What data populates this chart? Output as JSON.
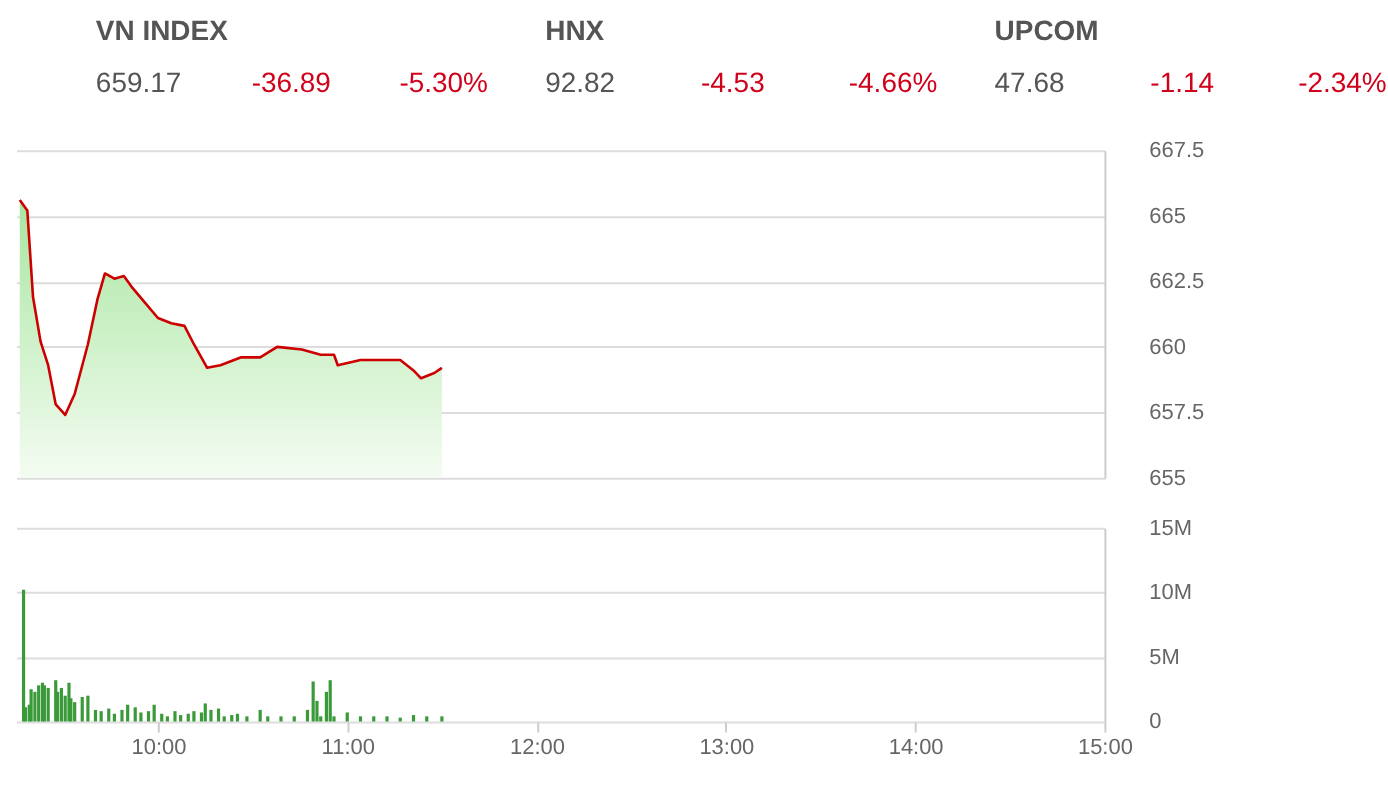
{
  "chart_data": [
    {
      "type": "area",
      "annotations": [
        "VN INDEX",
        "659.17",
        "-36.89",
        "-5.30%",
        "HNX",
        "92.82",
        "-4.53",
        "-4.66%",
        "UPCOM",
        "47.68",
        "-1.14",
        "-2.34%"
      ],
      "xlim": [
        9.25,
        15
      ],
      "ylim": [
        655,
        667.5
      ],
      "yticks": [
        655,
        657.5,
        660,
        662.5,
        665,
        667.5
      ],
      "grid": "y",
      "tick_labels": "y",
      "series": [
        {
          "color": "#cc0000",
          "x": [
            9.27,
            9.31,
            9.34,
            9.38,
            9.42,
            9.46,
            9.51,
            9.56,
            9.63,
            9.68,
            9.72,
            9.77,
            9.82,
            9.86,
            9.93,
            10.0,
            10.07,
            10.14,
            10.19,
            10.26,
            10.33,
            10.44,
            10.54,
            10.63,
            10.76,
            10.86,
            10.93,
            10.95,
            11.07,
            11.21,
            11.28,
            11.35,
            11.39,
            11.46,
            11.5
          ],
          "values": [
            665.6,
            665.2,
            661.9,
            660.2,
            659.3,
            657.8,
            657.4,
            658.2,
            660.1,
            661.8,
            662.8,
            662.6,
            662.7,
            662.3,
            661.7,
            661.1,
            660.9,
            660.8,
            660.1,
            659.2,
            659.3,
            659.6,
            659.6,
            660.0,
            659.9,
            659.7,
            659.7,
            659.3,
            659.5,
            659.5,
            659.5,
            659.1,
            658.8,
            659.0,
            659.2
          ]
        }
      ]
    },
    {
      "type": "bar",
      "xlim": [
        9.25,
        15
      ],
      "xticks": [
        {
          "value": 10,
          "label": "10:00"
        },
        {
          "value": 11,
          "label": "11:00"
        },
        {
          "value": 12,
          "label": "12:00"
        },
        {
          "value": 13,
          "label": "13:00"
        },
        {
          "value": 14,
          "label": "14:00"
        },
        {
          "value": 15,
          "label": "15:00"
        }
      ],
      "ylim": [
        0,
        15
      ],
      "yticks": [
        0,
        {
          "value": 5,
          "label": "5M"
        },
        {
          "value": 10,
          "label": "10M"
        },
        {
          "value": 15,
          "label": "15M"
        }
      ],
      "grid": "y",
      "series": [
        {
          "color": "#3a9a3a",
          "x": [
            9.29,
            9.3,
            9.32,
            9.33,
            9.35,
            9.37,
            9.39,
            9.4,
            9.42,
            9.46,
            9.47,
            9.49,
            9.51,
            9.53,
            9.54,
            9.56,
            9.6,
            9.63,
            9.67,
            9.7,
            9.74,
            9.77,
            9.81,
            9.84,
            9.88,
            9.91,
            9.95,
            9.98,
            10.02,
            10.05,
            10.09,
            10.12,
            10.16,
            10.19,
            10.23,
            10.25,
            10.28,
            10.32,
            10.35,
            10.39,
            10.42,
            10.47,
            10.54,
            10.58,
            10.65,
            10.72,
            10.79,
            10.82,
            10.84,
            10.86,
            10.89,
            10.91,
            10.93,
            11.0,
            11.07,
            11.14,
            11.21,
            11.28,
            11.35,
            11.42,
            11.5
          ],
          "values": [
            10.2,
            1.1,
            1.3,
            2.5,
            2.3,
            2.8,
            3.0,
            2.8,
            2.6,
            3.2,
            2.3,
            2.6,
            2.0,
            3.0,
            1.8,
            1.5,
            1.9,
            2.0,
            0.9,
            0.8,
            1.0,
            0.6,
            0.9,
            1.3,
            1.1,
            0.7,
            0.8,
            1.3,
            0.6,
            0.4,
            0.8,
            0.5,
            0.6,
            0.8,
            0.7,
            1.4,
            0.9,
            1.0,
            0.4,
            0.5,
            0.6,
            0.4,
            0.9,
            0.4,
            0.4,
            0.4,
            0.9,
            3.1,
            1.6,
            0.4,
            2.3,
            3.2,
            0.4,
            0.7,
            0.4,
            0.4,
            0.4,
            0.3,
            0.5,
            0.4,
            0.4
          ]
        }
      ]
    }
  ]
}
